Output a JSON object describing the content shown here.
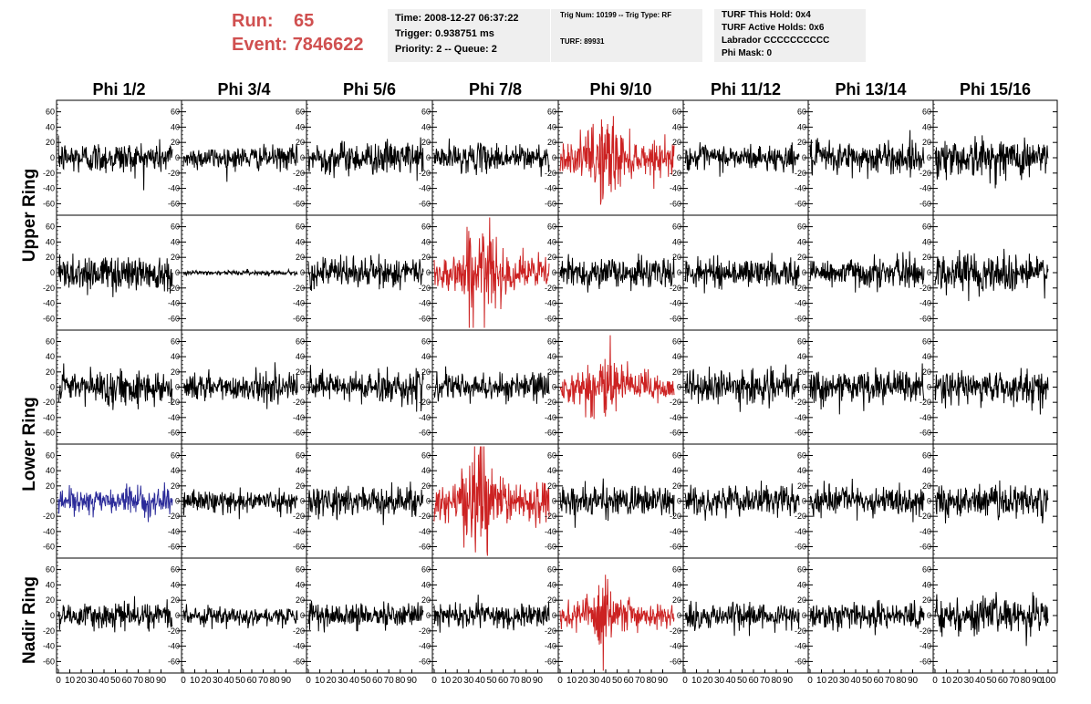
{
  "run_label": "Run:",
  "run_value": "65",
  "event_label": "Event:",
  "event_value": "7846622",
  "info_box_1": {
    "time": "Time: 2008-12-27 06:37:22",
    "trigger": "Trigger: 0.938751 ms",
    "priority": "Priority: 2 -- Queue: 2"
  },
  "info_box_2": {
    "trig_line": "Trig Num: 10199 -- Trig Type: RF",
    "turf": "TURF: 89931"
  },
  "info_box_3": {
    "this_hold": "TURF This Hold: 0x4",
    "active_holds": "TURF Active Holds: 0x6",
    "labrador": "Labrador CCCCCCCCCC",
    "phi_mask": "Phi Mask: 0"
  },
  "columns": [
    "Phi 1/2",
    "Phi 3/4",
    "Phi 5/6",
    "Phi 7/8",
    "Phi 9/10",
    "Phi 11/12",
    "Phi 13/14",
    "Phi 15/16"
  ],
  "row_labels": [
    "Upper Ring",
    "Lower Ring",
    "Nadir Ring"
  ],
  "y_ticks": [
    60,
    40,
    20,
    0,
    -20,
    -40,
    -60
  ],
  "x_ticks": [
    0,
    10,
    20,
    30,
    40,
    50,
    60,
    70,
    80,
    90,
    100
  ],
  "last_x_tick_label": "100",
  "colors": {
    "run_text": "#d05050",
    "trace_default": "#000000",
    "trace_triggered": "#cc2222",
    "trace_special": "#2a2a99",
    "info_box_bg": "#efefef"
  },
  "chart_data": {
    "type": "line",
    "xlim": [
      0,
      100
    ],
    "ylim": [
      -75,
      75
    ],
    "panel_rows": 5,
    "panel_cols": 8,
    "panels": [
      [
        {
          "color": "black",
          "amp": 14,
          "burst": 0
        },
        {
          "color": "black",
          "amp": 10,
          "burst": 0
        },
        {
          "color": "black",
          "amp": 14,
          "burst": 0
        },
        {
          "color": "black",
          "amp": 12,
          "burst": 0
        },
        {
          "color": "red",
          "amp": 14,
          "burst": 28
        },
        {
          "color": "black",
          "amp": 11,
          "burst": 0
        },
        {
          "color": "black",
          "amp": 14,
          "burst": 0
        },
        {
          "color": "black",
          "amp": 17,
          "burst": 0
        }
      ],
      [
        {
          "color": "black",
          "amp": 16,
          "burst": 0
        },
        {
          "color": "black",
          "amp": 2,
          "burst": 0
        },
        {
          "color": "black",
          "amp": 13,
          "burst": 0
        },
        {
          "color": "red",
          "amp": 15,
          "burst": 33
        },
        {
          "color": "black",
          "amp": 13,
          "burst": 0
        },
        {
          "color": "black",
          "amp": 12,
          "burst": 0
        },
        {
          "color": "black",
          "amp": 13,
          "burst": 0
        },
        {
          "color": "black",
          "amp": 17,
          "burst": 0
        }
      ],
      [
        {
          "color": "black",
          "amp": 15,
          "burst": 0
        },
        {
          "color": "black",
          "amp": 12,
          "burst": 0
        },
        {
          "color": "black",
          "amp": 14,
          "burst": 0
        },
        {
          "color": "black",
          "amp": 12,
          "burst": 0
        },
        {
          "color": "red",
          "amp": 13,
          "burst": 30
        },
        {
          "color": "black",
          "amp": 14,
          "burst": 0
        },
        {
          "color": "black",
          "amp": 14,
          "burst": 0
        },
        {
          "color": "black",
          "amp": 14,
          "burst": 0
        }
      ],
      [
        {
          "color": "blue",
          "amp": 11,
          "burst": 0
        },
        {
          "color": "black",
          "amp": 9,
          "burst": 0
        },
        {
          "color": "black",
          "amp": 13,
          "burst": 0
        },
        {
          "color": "red",
          "amp": 17,
          "burst": 38
        },
        {
          "color": "black",
          "amp": 13,
          "burst": 0
        },
        {
          "color": "black",
          "amp": 13,
          "burst": 0
        },
        {
          "color": "black",
          "amp": 12,
          "burst": 0
        },
        {
          "color": "black",
          "amp": 15,
          "burst": 0
        }
      ],
      [
        {
          "color": "black",
          "amp": 11,
          "burst": 0
        },
        {
          "color": "black",
          "amp": 8,
          "burst": 0
        },
        {
          "color": "black",
          "amp": 10,
          "burst": 0
        },
        {
          "color": "black",
          "amp": 11,
          "burst": 0
        },
        {
          "color": "red",
          "amp": 10,
          "burst": 22
        },
        {
          "color": "black",
          "amp": 11,
          "burst": 0
        },
        {
          "color": "black",
          "amp": 12,
          "burst": 0
        },
        {
          "color": "black",
          "amp": 15,
          "burst": 0
        }
      ]
    ]
  }
}
